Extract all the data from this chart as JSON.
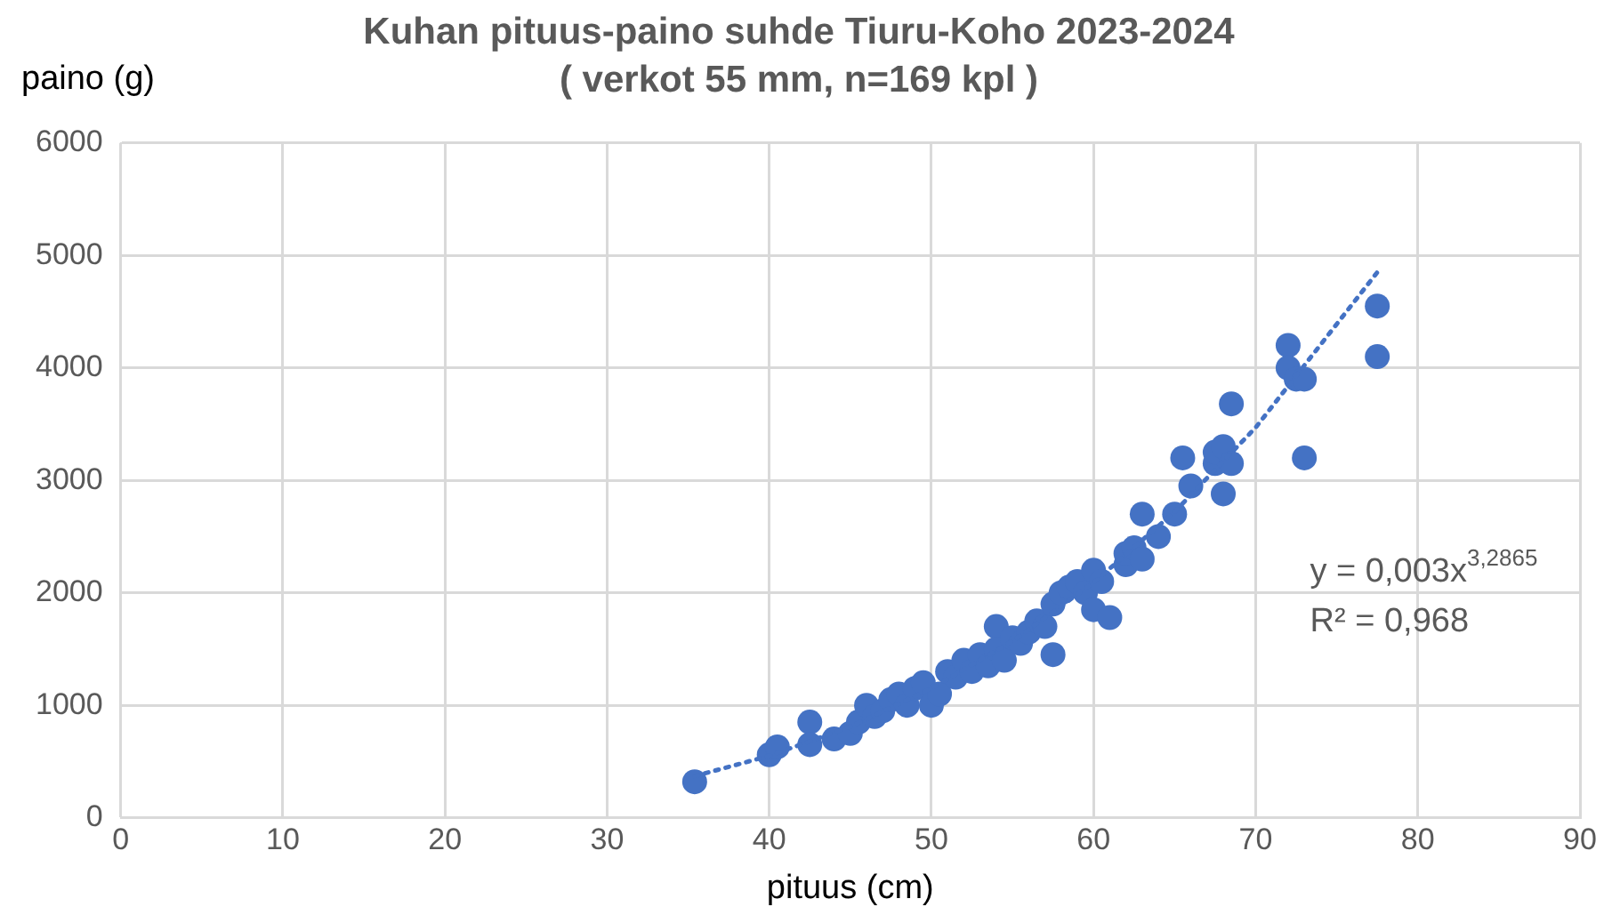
{
  "chart_data": {
    "type": "scatter",
    "title": "Kuhan pituus-paino suhde Tiuru-Koho 2023-2024",
    "subtitle": "( verkot 55 mm, n=169 kpl )",
    "xlabel": "pituus (cm)",
    "ylabel": "paino (g)",
    "xlim": [
      0,
      90
    ],
    "xticks": [
      0,
      10,
      20,
      30,
      40,
      50,
      60,
      70,
      80,
      90
    ],
    "ylim": [
      0,
      6000
    ],
    "yticks": [
      0,
      1000,
      2000,
      3000,
      4000,
      5000,
      6000
    ],
    "grid": true,
    "legend": false,
    "marker": "circle",
    "annotations": [
      "y = 0,003x$^{3,2865}$",
      "R² = 0,968"
    ],
    "series": [
      {
        "color": "#4472c4",
        "x": [
          35.4,
          40,
          40.5,
          42.5,
          42.5,
          44,
          45,
          45.5,
          46,
          46.5,
          47,
          47.5,
          48,
          48.5,
          49,
          49.5,
          50,
          50.5,
          51,
          51.5,
          52,
          52.5,
          53,
          53.5,
          54,
          54,
          54.5,
          55,
          55.5,
          56,
          56.5,
          57,
          57.5,
          57.5,
          58,
          58.5,
          59,
          59.5,
          60,
          60,
          60.5,
          61,
          62,
          62,
          62.5,
          63,
          63,
          64,
          65,
          65.5,
          66,
          67.5,
          67.5,
          68,
          68,
          68.5,
          68.5,
          72,
          72,
          72.5,
          73,
          73,
          77.5,
          77.5
        ],
        "values": [
          320,
          560,
          630,
          850,
          650,
          700,
          750,
          850,
          1000,
          900,
          950,
          1050,
          1100,
          1000,
          1150,
          1200,
          1000,
          1100,
          1300,
          1250,
          1400,
          1300,
          1450,
          1350,
          1700,
          1500,
          1400,
          1600,
          1550,
          1650,
          1750,
          1700,
          1450,
          1900,
          2000,
          2050,
          2100,
          2000,
          2200,
          1850,
          2100,
          1780,
          2250,
          2350,
          2400,
          2700,
          2300,
          2500,
          2700,
          3200,
          2950,
          3150,
          3250,
          3300,
          2880,
          3150,
          3680,
          4200,
          4000,
          3900,
          3900,
          3200,
          4550,
          4100
        ]
      },
      {
        "type": "line",
        "color": "#4472c4",
        "line_style": "dotted",
        "marker": "none",
        "x": [
          35.4,
          40,
          45,
          50,
          55,
          60,
          65,
          70,
          77.5
        ],
        "values": [
          370,
          550,
          810,
          1150,
          1570,
          2090,
          2720,
          3470,
          4850
        ]
      }
    ]
  }
}
